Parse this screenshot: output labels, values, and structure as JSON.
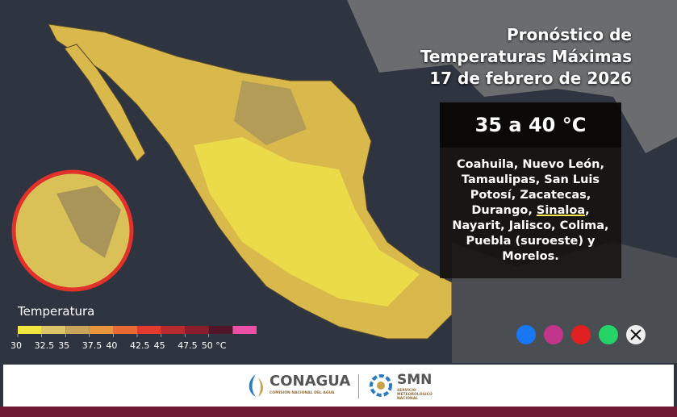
{
  "header": {
    "title_lines": [
      "Pronóstico de",
      "Temperaturas Máximas",
      "17 de febrero de 2026"
    ]
  },
  "forecast_box": {
    "range": "35 a 40 °C",
    "regions_parts": [
      "Coahuila, Nuevo León, Tamaulipas, San Luis Potosí, Zacatecas, Durango, ",
      "Sinaloa",
      ", Nayarit, Jalisco, Colima, Puebla (suroeste) y Morelos."
    ]
  },
  "legend": {
    "title": "Temperatura",
    "colors": [
      "#f2e640",
      "#dcc46a",
      "#c9a45c",
      "#e8953e",
      "#ea6a36",
      "#e23a2e",
      "#b82a2e",
      "#8a1e2e",
      "#4e1626",
      "#ec4fa6"
    ],
    "ticks": [
      30,
      32.5,
      35,
      37.5,
      40,
      42.5,
      45,
      47.5,
      {
        "value": 50,
        "label": "50 °C"
      }
    ]
  },
  "footer": {
    "logo1": "CONAGUA",
    "logo1_sub": "COMISIÓN NACIONAL DEL AGUA",
    "logo2": "SMN",
    "logo2_sub": "SERVICIO METEOROLÓGICO NACIONAL"
  }
}
